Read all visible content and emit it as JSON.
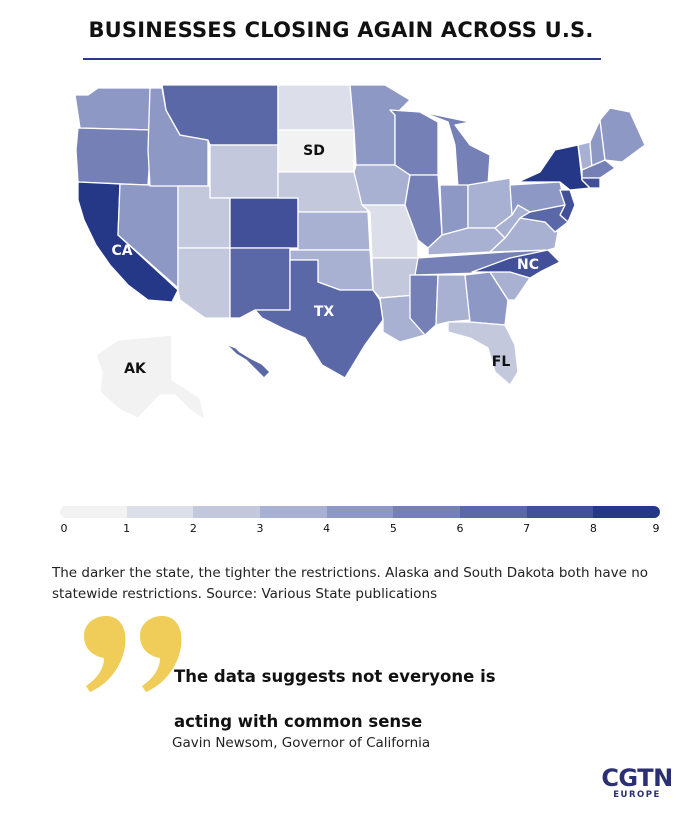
{
  "title": "BUSINESSES CLOSING AGAIN ACROSS U.S.",
  "chart_data": {
    "type": "choropleth",
    "scale": {
      "min": 0,
      "max": 9,
      "ticks": [
        "0",
        "1",
        "2",
        "3",
        "4",
        "5",
        "6",
        "7",
        "8",
        "9"
      ],
      "colors": [
        "#f2f2f2",
        "#dcdfe9",
        "#c3c8dd",
        "#a9b1d2",
        "#8e98c4",
        "#7480b6",
        "#5b68a8",
        "#42509a",
        "#253787"
      ]
    },
    "labels": {
      "CA": "CA",
      "TX": "TX",
      "FL": "FL",
      "NC": "NC",
      "SD": "SD",
      "AK": "AK"
    },
    "states": [
      {
        "id": "WA",
        "value": 4
      },
      {
        "id": "OR",
        "value": 5
      },
      {
        "id": "CA",
        "value": 9
      },
      {
        "id": "NV",
        "value": 4
      },
      {
        "id": "ID",
        "value": 4
      },
      {
        "id": "MT",
        "value": 6
      },
      {
        "id": "WY",
        "value": 2
      },
      {
        "id": "UT",
        "value": 2
      },
      {
        "id": "AZ",
        "value": 2
      },
      {
        "id": "CO",
        "value": 7
      },
      {
        "id": "NM",
        "value": 6
      },
      {
        "id": "ND",
        "value": 1
      },
      {
        "id": "SD",
        "value": 0
      },
      {
        "id": "NE",
        "value": 2
      },
      {
        "id": "KS",
        "value": 3
      },
      {
        "id": "OK",
        "value": 3
      },
      {
        "id": "TX",
        "value": 6
      },
      {
        "id": "MN",
        "value": 4
      },
      {
        "id": "IA",
        "value": 3
      },
      {
        "id": "MO",
        "value": 1
      },
      {
        "id": "AR",
        "value": 2
      },
      {
        "id": "LA",
        "value": 3
      },
      {
        "id": "WI",
        "value": 5
      },
      {
        "id": "IL",
        "value": 5
      },
      {
        "id": "MI",
        "value": 5
      },
      {
        "id": "IN",
        "value": 4
      },
      {
        "id": "OH",
        "value": 3
      },
      {
        "id": "KY",
        "value": 3
      },
      {
        "id": "TN",
        "value": 5
      },
      {
        "id": "MS",
        "value": 5
      },
      {
        "id": "AL",
        "value": 3
      },
      {
        "id": "GA",
        "value": 4
      },
      {
        "id": "FL",
        "value": 2
      },
      {
        "id": "SC",
        "value": 3
      },
      {
        "id": "NC",
        "value": 7
      },
      {
        "id": "VA",
        "value": 3
      },
      {
        "id": "WV",
        "value": 3
      },
      {
        "id": "PA",
        "value": 4
      },
      {
        "id": "NY",
        "value": 8
      },
      {
        "id": "NJ",
        "value": 7
      },
      {
        "id": "MD",
        "value": 6
      },
      {
        "id": "VT",
        "value": 3
      },
      {
        "id": "NH",
        "value": 4
      },
      {
        "id": "ME",
        "value": 4
      },
      {
        "id": "MA",
        "value": 5
      },
      {
        "id": "CT",
        "value": 7
      },
      {
        "id": "HI",
        "value": 6
      },
      {
        "id": "AK",
        "value": 0
      }
    ]
  },
  "caption": "The darker the state, the tighter the restrictions. Alaska and South Dakota both have no statewide restrictions. Source: Various State publications",
  "quote": {
    "text": "The data suggests not everyone is acting with common sense",
    "author": "Gavin Newsom, Governor of California",
    "mark_color": "#f0cc58"
  },
  "logo": {
    "main": "CGTN",
    "sub": "EUROPE"
  }
}
